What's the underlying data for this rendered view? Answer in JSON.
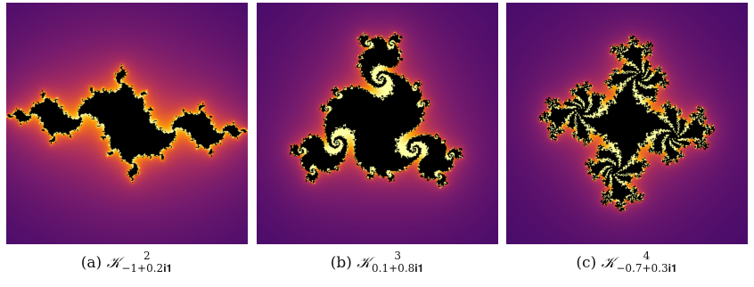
{
  "figures": [
    {
      "id": "a",
      "tag": "(a)",
      "symbol": "𝒦",
      "exponent": "2",
      "subscript": "−1+0.2𝐢𝟏",
      "colormap": "inferno",
      "fractal": {
        "power": 2,
        "c_re": -1.0,
        "c_im": 0.2
      }
    },
    {
      "id": "b",
      "tag": "(b)",
      "symbol": "𝒦",
      "exponent": "3",
      "subscript": "0.1+0.8𝐢𝟏",
      "colormap": "inferno",
      "fractal": {
        "power": 3,
        "c_re": 0.1,
        "c_im": 0.8
      }
    },
    {
      "id": "c",
      "tag": "(c)",
      "symbol": "𝒦",
      "exponent": "4",
      "subscript": "−0.7+0.3𝐢𝟏",
      "colormap": "inferno",
      "fractal": {
        "power": 4,
        "c_re": -0.7,
        "c_im": 0.3
      }
    }
  ],
  "colors": {
    "set_interior": "#000000",
    "inferno_stops": [
      "#000004",
      "#1b0c41",
      "#4a0c6b",
      "#781c6d",
      "#a52c60",
      "#cf4446",
      "#ed6925",
      "#fb9b06",
      "#f7d13d",
      "#fcffa4"
    ]
  }
}
